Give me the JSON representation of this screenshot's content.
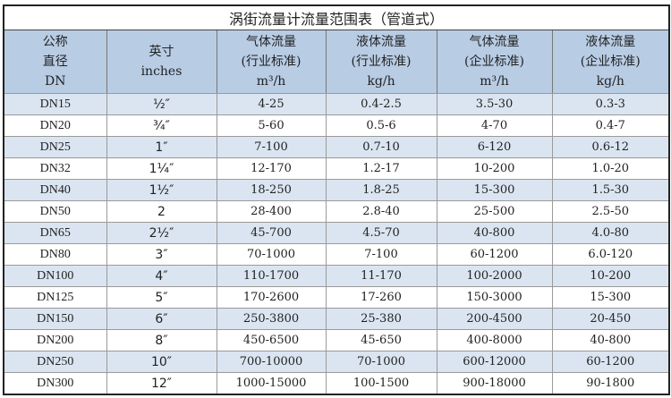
{
  "title": "涡街流量计流量范围表（管道式）",
  "columns": [
    {
      "line1": "公称",
      "line2": "直径",
      "line3": "DN"
    },
    {
      "line1": "",
      "line2": "英寸",
      "line3": "inches"
    },
    {
      "line1": "气体流量",
      "line2": "(行业标准)",
      "line3": "m³/h"
    },
    {
      "line1": "液体流量",
      "line2": "(行业标准)",
      "line3": "kg/h"
    },
    {
      "line1": "气体流量",
      "line2": "(企业标准)",
      "line3": "m³/h"
    },
    {
      "line1": "液体流量",
      "line2": "(企业标准)",
      "line3": "kg/h"
    }
  ],
  "rows": [
    [
      "DN15",
      "½″",
      "4-25",
      "0.4-2.5",
      "3.5-30",
      "0.3-3"
    ],
    [
      "DN20",
      "¾″",
      "5-60",
      "0.5-6",
      "4-70",
      "0.4-7"
    ],
    [
      "DN25",
      "1″",
      "7-100",
      "0.7-10",
      "6-120",
      "0.6-12"
    ],
    [
      "DN32",
      "1¼″",
      "12-170",
      "1.2-17",
      "10-200",
      "1.0-20"
    ],
    [
      "DN40",
      "1½″",
      "18-250",
      "1.8-25",
      "15-300",
      "1.5-30"
    ],
    [
      "DN50",
      "2",
      "28-400",
      "2.8-40",
      "25-500",
      "2.5-50"
    ],
    [
      "DN65",
      "2½″",
      "45-700",
      "4.5-70",
      "40-800",
      "4.0-80"
    ],
    [
      "DN80",
      "3″",
      "70-1000",
      "7-100",
      "60-1200",
      "6.0-120"
    ],
    [
      "DN100",
      "4″",
      "110-1700",
      "11-170",
      "100-2000",
      "10-200"
    ],
    [
      "DN125",
      "5″",
      "170-2600",
      "17-260",
      "150-3000",
      "15-300"
    ],
    [
      "DN150",
      "6″",
      "250-3800",
      "25-380",
      "200-4500",
      "20-450"
    ],
    [
      "DN200",
      "8″",
      "450-6500",
      "45-650",
      "400-8000",
      "40-800"
    ],
    [
      "DN250",
      "10″",
      "700-10000",
      "70-1000",
      "600-12000",
      "60-1200"
    ],
    [
      "DN300",
      "12″",
      "1000-15000",
      "100-1500",
      "900-18000",
      "90-1800"
    ]
  ],
  "colors": {
    "header_bg": "#b8cce4",
    "row_alt_bg": "#dbe5f1",
    "border": "#9a9a9a"
  }
}
